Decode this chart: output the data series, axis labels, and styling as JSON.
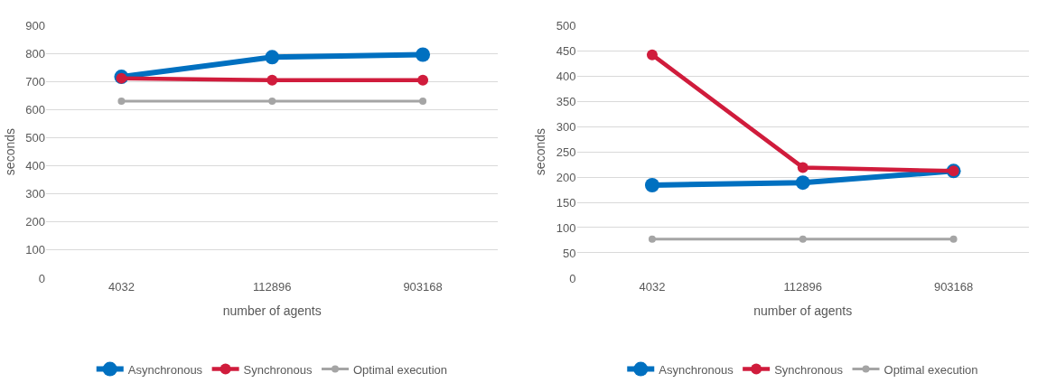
{
  "chart_data": [
    {
      "type": "line",
      "xlabel": "number of agents",
      "ylabel": "seconds",
      "categories": [
        "4032",
        "112896",
        "903168"
      ],
      "ylim": [
        0,
        900
      ],
      "yticks": [
        0,
        100,
        200,
        300,
        400,
        500,
        600,
        700,
        800,
        900
      ],
      "grid": "y",
      "legend": "bottom",
      "marker": "circle",
      "line_style": "solid",
      "series": [
        {
          "name": "Asynchronous",
          "color": "#0070c0",
          "values": [
            717,
            787,
            796
          ]
        },
        {
          "name": "Synchronous",
          "color": "#d01c3c",
          "values": [
            712,
            705,
            705
          ]
        },
        {
          "name": "Optimal execution",
          "color": "#a5a5a5",
          "values": [
            630,
            630,
            630
          ]
        }
      ]
    },
    {
      "type": "line",
      "xlabel": "number of agents",
      "ylabel": "seconds",
      "categories": [
        "4032",
        "112896",
        "903168"
      ],
      "ylim": [
        0,
        500
      ],
      "yticks": [
        0,
        50,
        100,
        150,
        200,
        250,
        300,
        350,
        400,
        450,
        500
      ],
      "grid": "y",
      "legend": "bottom",
      "marker": "circle",
      "line_style": "solid",
      "series": [
        {
          "name": "Asynchronous",
          "color": "#0070c0",
          "values": [
            184,
            189,
            212
          ]
        },
        {
          "name": "Synchronous",
          "color": "#d01c3c",
          "values": [
            442,
            219,
            212
          ]
        },
        {
          "name": "Optimal execution",
          "color": "#a5a5a5",
          "values": [
            77,
            77,
            77
          ]
        }
      ]
    }
  ]
}
